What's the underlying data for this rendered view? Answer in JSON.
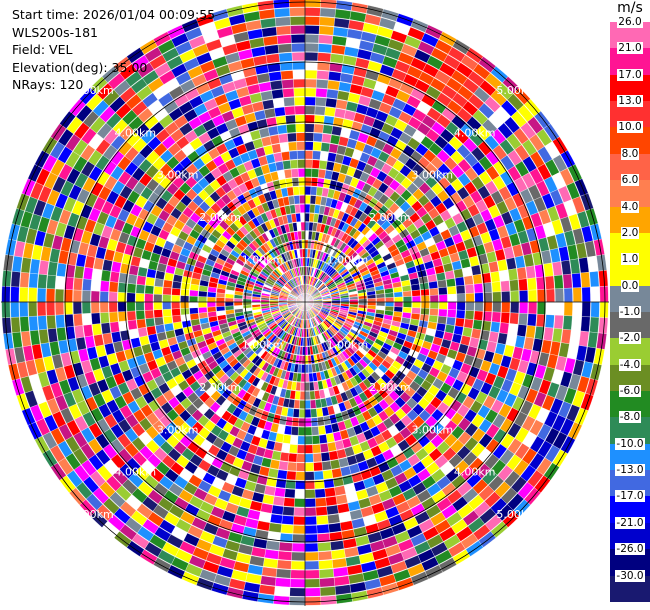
{
  "header": {
    "start_time": "Start time: 2026/01/04 00:09:55",
    "instrument": "WLS200s-181",
    "field": "Field: VEL",
    "elevation": "Elevation(deg): 35.00",
    "nrays": "NRays: 120"
  },
  "colorbar": {
    "unit": "m/s",
    "levels": [
      {
        "label": "26.0",
        "color": "#ff69b4"
      },
      {
        "label": "21.0",
        "color": "#ff1493"
      },
      {
        "label": "17.0",
        "color": "#ff0000"
      },
      {
        "label": "13.0",
        "color": "#ff3030"
      },
      {
        "label": "10.0",
        "color": "#ff4500"
      },
      {
        "label": "8.0",
        "color": "#ff6347"
      },
      {
        "label": "6.0",
        "color": "#ff7f50"
      },
      {
        "label": "4.0",
        "color": "#ffa500"
      },
      {
        "label": "2.0",
        "color": "#ffff00"
      },
      {
        "label": "1.0",
        "color": "#ffff00"
      },
      {
        "label": "0.0",
        "color": "#778899"
      },
      {
        "label": "-1.0",
        "color": "#696969"
      },
      {
        "label": "-2.0",
        "color": "#9acd32"
      },
      {
        "label": "-4.0",
        "color": "#6b8e23"
      },
      {
        "label": "-6.0",
        "color": "#228b22"
      },
      {
        "label": "-8.0",
        "color": "#2e8b57"
      },
      {
        "label": "-10.0",
        "color": "#1e90ff"
      },
      {
        "label": "-13.0",
        "color": "#4169e1"
      },
      {
        "label": "-17.0",
        "color": "#0000ff"
      },
      {
        "label": "-21.0",
        "color": "#0000cd"
      },
      {
        "label": "-26.0",
        "color": "#000080"
      },
      {
        "label": "-30.0",
        "color": "#191970"
      }
    ]
  },
  "range_rings": [
    "1.00km",
    "2.00km",
    "3.00km",
    "4.00km",
    "5.00km"
  ],
  "field_name": "VEL"
}
